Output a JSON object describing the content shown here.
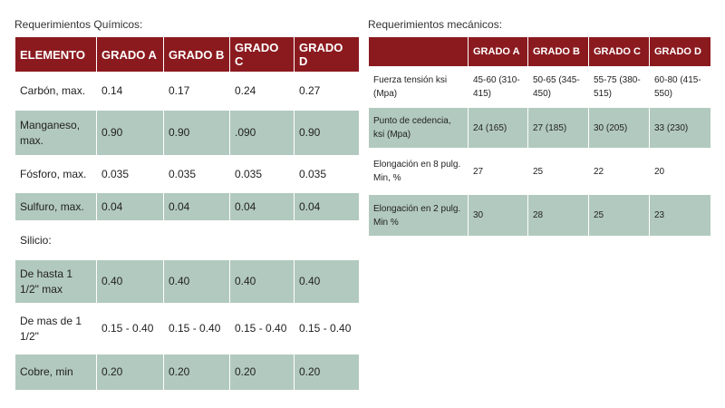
{
  "chemical": {
    "title": "Requerimientos Químicos:",
    "headers": [
      "ELEMENTO",
      "GRADO A",
      "GRADO B",
      "GRADO C",
      "GRADO D"
    ],
    "rows": [
      [
        "Carbón, max.",
        "0.14",
        "0.17",
        "0.24",
        "0.27"
      ],
      [
        "Manganeso, max.",
        "0.90",
        "0.90",
        ".090",
        "0.90"
      ],
      [
        "Fósforo, max.",
        "0.035",
        "0.035",
        "0.035",
        "0.035"
      ],
      [
        "Sulfuro, max.",
        "0.04",
        "0.04",
        "0.04",
        "0.04"
      ],
      [
        "Silicio:",
        "",
        "",
        "",
        ""
      ],
      [
        "De hasta 1 1/2\" max",
        "0.40",
        "0.40",
        "0.40",
        "0.40"
      ],
      [
        "De mas de 1 1/2\"",
        "0.15 - 0.40",
        "0.15 - 0.40",
        "0.15 - 0.40",
        "0.15 - 0.40"
      ],
      [
        "Cobre, min",
        "0.20",
        "0.20",
        "0.20",
        "0.20"
      ]
    ]
  },
  "mechanical": {
    "title": "Requerimientos mecánicos:",
    "headers": [
      "",
      "GRADO A",
      "GRADO B",
      "GRADO C",
      "GRADO D"
    ],
    "rows": [
      [
        "Fuerza tensión ksi (Mpa)",
        "45-60 (310-415)",
        "50-65 (345-450)",
        "55-75 (380-515)",
        "60-80 (415-550)"
      ],
      [
        "Punto de cedencia, ksi (Mpa)",
        "24 (165)",
        "27 (185)",
        "30 (205)",
        "33 (230)"
      ],
      [
        "Elongación en 8 pulg. Min, %",
        "27",
        "25",
        "22",
        "20"
      ],
      [
        "Elongación en 2 pulg. Min %",
        "30",
        "28",
        "25",
        "23"
      ]
    ]
  }
}
